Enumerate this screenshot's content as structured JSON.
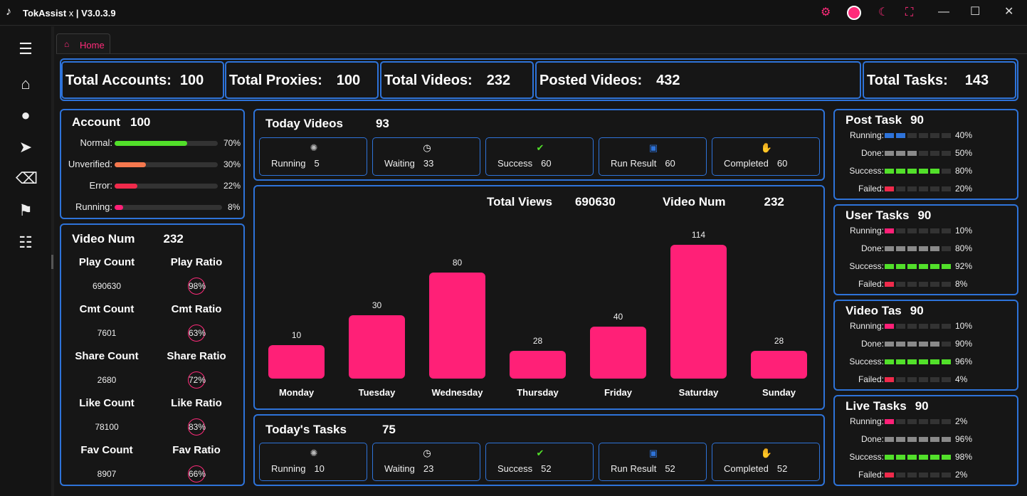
{
  "app": {
    "name": "TokAssist",
    "close_char": "x",
    "version": "V3.0.3.9"
  },
  "tab": {
    "label": "Home"
  },
  "colors": {
    "accent": "#ff2077",
    "border": "#2e73d9",
    "green": "#52e02a",
    "orange": "#f5784e",
    "red": "#f02a4b",
    "blue": "#2e73d9",
    "gray": "#8a8a8a"
  },
  "stats": [
    {
      "label": "Total Accounts:",
      "value": "100"
    },
    {
      "label": "Total Proxies:",
      "value": "100"
    },
    {
      "label": "Total Videos:",
      "value": "232"
    },
    {
      "label": "Posted Videos:",
      "value": "432"
    },
    {
      "label": "Total Tasks:",
      "value": "143"
    }
  ],
  "account": {
    "title": "Account",
    "count": "100",
    "rows": [
      {
        "label": "Normal:",
        "percent": "70%",
        "value": 70,
        "color": "#52e02a"
      },
      {
        "label": "Unverified:",
        "percent": "30%",
        "value": 30,
        "color": "#f5784e"
      },
      {
        "label": "Error:",
        "percent": "22%",
        "value": 22,
        "color": "#f02a4b"
      },
      {
        "label": "Running:",
        "percent": "8%",
        "value": 8,
        "color": "#ff2077"
      }
    ]
  },
  "video_stats": {
    "title": "Video Num",
    "count": "232",
    "rows": [
      {
        "count_label": "Play Count",
        "count_value": "690630",
        "ratio_label": "Play Ratio",
        "ratio_value": "98%"
      },
      {
        "count_label": "Cmt Count",
        "count_value": "7601",
        "ratio_label": "Cmt Ratio",
        "ratio_value": "63%"
      },
      {
        "count_label": "Share Count",
        "count_value": "2680",
        "ratio_label": "Share Ratio",
        "ratio_value": "72%"
      },
      {
        "count_label": "Like Count",
        "count_value": "78100",
        "ratio_label": "Like Ratio",
        "ratio_value": "83%"
      },
      {
        "count_label": "Fav Count",
        "count_value": "8907",
        "ratio_label": "Fav Ratio",
        "ratio_value": "66%"
      }
    ]
  },
  "today_videos": {
    "title": "Today Videos",
    "count": "93",
    "items": [
      {
        "label": "Running",
        "value": "5",
        "icon": "spinner-icon"
      },
      {
        "label": "Waiting",
        "value": "33",
        "icon": "clock-icon"
      },
      {
        "label": "Success",
        "value": "60",
        "icon": "check-circle-icon"
      },
      {
        "label": "Run Result",
        "value": "60",
        "icon": "result-icon"
      },
      {
        "label": "Completed",
        "value": "60",
        "icon": "hand-icon"
      }
    ]
  },
  "today_tasks": {
    "title": "Today's Tasks",
    "count": "75",
    "items": [
      {
        "label": "Running",
        "value": "10",
        "icon": "spinner-icon"
      },
      {
        "label": "Waiting",
        "value": "23",
        "icon": "clock-icon"
      },
      {
        "label": "Success",
        "value": "52",
        "icon": "check-circle-icon"
      },
      {
        "label": "Run Result",
        "value": "52",
        "icon": "result-icon"
      },
      {
        "label": "Completed",
        "value": "52",
        "icon": "hand-icon"
      }
    ]
  },
  "chart_header": {
    "views_label": "Total Views",
    "views_value": "690630",
    "num_label": "Video Num",
    "num_value": "232"
  },
  "chart_data": {
    "type": "bar",
    "categories": [
      "Monday",
      "Tuesday",
      "Wednesday",
      "Thursday",
      "Friday",
      "Saturday",
      "Sunday"
    ],
    "values": [
      10,
      30,
      80,
      28,
      40,
      114,
      28
    ],
    "title": "",
    "xlabel": "",
    "ylabel": "",
    "grid": false
  },
  "task_panels": [
    {
      "title": "Post Task",
      "count": "90",
      "rows": [
        {
          "label": "Running:",
          "percent": "40%",
          "value": 40,
          "color": "#2e73d9"
        },
        {
          "label": "Done:",
          "percent": "50%",
          "value": 50,
          "color": "#8a8a8a"
        },
        {
          "label": "Success:",
          "percent": "80%",
          "value": 80,
          "color": "#52e02a"
        },
        {
          "label": "Failed:",
          "percent": "20%",
          "value": 20,
          "color": "#f02a4b"
        }
      ]
    },
    {
      "title": "User Tasks",
      "count": "90",
      "rows": [
        {
          "label": "Running:",
          "percent": "10%",
          "value": 10,
          "color": "#ff2077"
        },
        {
          "label": "Done:",
          "percent": "80%",
          "value": 80,
          "color": "#8a8a8a"
        },
        {
          "label": "Success:",
          "percent": "92%",
          "value": 92,
          "color": "#52e02a"
        },
        {
          "label": "Failed:",
          "percent": "8%",
          "value": 8,
          "color": "#f02a4b"
        }
      ]
    },
    {
      "title": "Video Tas",
      "count": "90",
      "rows": [
        {
          "label": "Running:",
          "percent": "10%",
          "value": 10,
          "color": "#ff2077"
        },
        {
          "label": "Done:",
          "percent": "90%",
          "value": 90,
          "color": "#8a8a8a"
        },
        {
          "label": "Success:",
          "percent": "96%",
          "value": 96,
          "color": "#52e02a"
        },
        {
          "label": "Failed:",
          "percent": "4%",
          "value": 4,
          "color": "#f02a4b"
        }
      ]
    },
    {
      "title": "Live Tasks",
      "count": "90",
      "rows": [
        {
          "label": "Running:",
          "percent": "2%",
          "value": 2,
          "color": "#ff2077"
        },
        {
          "label": "Done:",
          "percent": "96%",
          "value": 96,
          "color": "#8a8a8a"
        },
        {
          "label": "Success:",
          "percent": "98%",
          "value": 98,
          "color": "#52e02a"
        },
        {
          "label": "Failed:",
          "percent": "2%",
          "value": 2,
          "color": "#f02a4b"
        }
      ]
    }
  ]
}
